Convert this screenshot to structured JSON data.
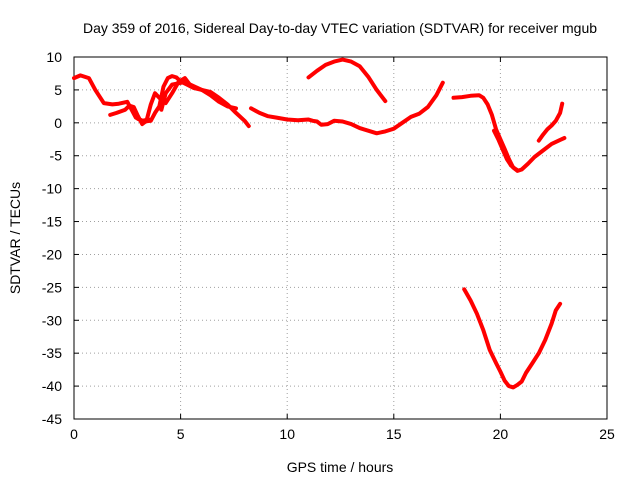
{
  "chart_data": {
    "type": "line",
    "title": "Day 359 of 2016, Sidereal Day-to-day VTEC variation (SDTVAR) for receiver mgub",
    "xlabel": "GPS time / hours",
    "ylabel": "SDTVAR / TECUs",
    "xlim": [
      0,
      25
    ],
    "ylim": [
      -45,
      10
    ],
    "xticks": [
      0,
      5,
      10,
      15,
      20,
      25
    ],
    "yticks": [
      10,
      5,
      0,
      -5,
      -10,
      -15,
      -20,
      -25,
      -30,
      -35,
      -40,
      -45
    ],
    "grid": true,
    "legend": "none",
    "line_color": "#ff0000",
    "series": [
      {
        "x": [
          0.0,
          0.3,
          0.7,
          1.0,
          1.4,
          1.8,
          2.1,
          2.5,
          2.7,
          2.9,
          3.2,
          3.5
        ],
        "y": [
          6.8,
          7.2,
          6.8,
          5.0,
          3.0,
          2.8,
          2.9,
          3.2,
          2.0,
          0.8,
          0.3,
          0.5
        ]
      },
      {
        "x": [
          1.7,
          2.0,
          2.4,
          2.6,
          2.8,
          3.0,
          3.2,
          3.4,
          3.6,
          3.8,
          4.0,
          4.3,
          4.6,
          4.9,
          5.2,
          5.5
        ],
        "y": [
          1.2,
          1.5,
          2.0,
          2.6,
          2.4,
          1.0,
          -0.2,
          0.3,
          2.8,
          4.5,
          3.8,
          3.0,
          4.5,
          6.2,
          6.8,
          5.5
        ]
      },
      {
        "x": [
          3.0,
          3.3,
          3.6,
          3.8,
          4.0,
          4.2,
          4.4,
          4.6,
          4.8,
          5.0,
          5.3,
          5.6,
          6.0,
          6.4,
          6.8,
          7.2,
          7.6,
          8.0,
          8.2
        ],
        "y": [
          0.6,
          0.2,
          0.3,
          1.5,
          2.5,
          5.5,
          6.8,
          7.1,
          6.9,
          6.3,
          5.8,
          5.3,
          5.0,
          4.7,
          3.8,
          2.8,
          1.5,
          0.3,
          -0.5
        ]
      },
      {
        "x": [
          4.1,
          4.3,
          4.6,
          4.9,
          5.2,
          5.6,
          6.0,
          6.4,
          6.8,
          7.2,
          7.6
        ],
        "y": [
          2.0,
          4.5,
          5.8,
          6.0,
          6.2,
          5.6,
          5.0,
          4.2,
          3.2,
          2.5,
          2.2
        ]
      },
      {
        "x": [
          8.3,
          8.7,
          9.1,
          9.5,
          10.0,
          10.5,
          11.0,
          11.2,
          11.4,
          11.6,
          11.9,
          12.2,
          12.6,
          13.0,
          13.4,
          13.8,
          14.2,
          14.6,
          15.0,
          15.4,
          15.8,
          16.2,
          16.6,
          17.0,
          17.3
        ],
        "y": [
          2.2,
          1.5,
          1.0,
          0.8,
          0.5,
          0.4,
          0.5,
          0.3,
          0.2,
          -0.3,
          -0.2,
          0.3,
          0.2,
          -0.2,
          -0.8,
          -1.2,
          -1.6,
          -1.3,
          -0.9,
          0.0,
          0.9,
          1.4,
          2.4,
          4.2,
          6.1
        ]
      },
      {
        "x": [
          11.0,
          11.4,
          11.8,
          12.2,
          12.6,
          13.0,
          13.4,
          13.8,
          14.2,
          14.6
        ],
        "y": [
          6.9,
          7.9,
          8.8,
          9.3,
          9.6,
          9.3,
          8.6,
          7.0,
          5.0,
          3.3
        ]
      },
      {
        "x": [
          17.8,
          18.2,
          18.6,
          19.0,
          19.2,
          19.4,
          19.6,
          19.8,
          20.0,
          20.2,
          20.4,
          20.6,
          20.8,
          21.0,
          21.3,
          21.6,
          22.0,
          22.4,
          22.8,
          23.0
        ],
        "y": [
          3.8,
          3.9,
          4.1,
          4.2,
          3.8,
          2.8,
          1.2,
          -1.0,
          -2.5,
          -4.0,
          -5.5,
          -6.8,
          -7.3,
          -7.1,
          -6.2,
          -5.2,
          -4.2,
          -3.2,
          -2.6,
          -2.3
        ]
      },
      {
        "x": [
          19.7,
          19.9,
          20.1,
          20.3,
          20.5,
          20.7,
          20.8
        ],
        "y": [
          -1.2,
          -2.5,
          -4.0,
          -5.5,
          -6.5,
          -7.0,
          -7.2
        ]
      },
      {
        "x": [
          21.8,
          22.0,
          22.2,
          22.4,
          22.6,
          22.8,
          22.9
        ],
        "y": [
          -2.7,
          -1.8,
          -1.0,
          -0.4,
          0.3,
          1.5,
          2.9
        ]
      },
      {
        "x": [
          18.3,
          18.6,
          18.9,
          19.2,
          19.5,
          19.8,
          20.0,
          20.2,
          20.4,
          20.6,
          20.8,
          21.0,
          21.2,
          21.5,
          21.8,
          22.1,
          22.4,
          22.6,
          22.8
        ],
        "y": [
          -25.3,
          -27.0,
          -29.0,
          -31.5,
          -34.5,
          -36.5,
          -37.8,
          -39.2,
          -40.0,
          -40.2,
          -39.8,
          -39.3,
          -38.0,
          -36.5,
          -35.0,
          -33.0,
          -30.5,
          -28.5,
          -27.5
        ]
      }
    ]
  }
}
